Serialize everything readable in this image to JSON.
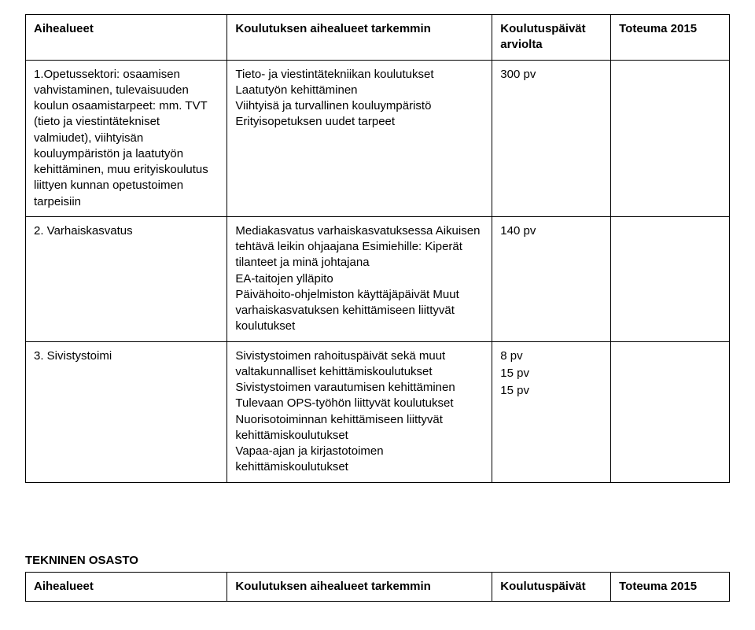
{
  "table1": {
    "headers": {
      "c1": "Aihealueet",
      "c2": "Koulutuksen aihealueet tarkemmin",
      "c3": "Koulutuspäivät arviolta",
      "c4": "Toteuma 2015"
    },
    "rows": [
      {
        "c1": "1.Opetussektori: osaamisen vahvistaminen, tulevaisuuden koulun osaamistarpeet: mm. TVT (tieto ja viestintätekniset valmiudet), viihtyisän kouluympäristön ja laatutyön kehittäminen, muu erityiskoulutus liittyen kunnan opetustoimen tarpeisiin",
        "c2": "Tieto- ja viestintätekniikan koulutukset Laatutyön kehittäminen\nViihtyisä ja turvallinen kouluympäristö Erityisopetuksen uudet tarpeet",
        "c3": "300 pv",
        "c4": ""
      },
      {
        "c1": "2. Varhaiskasvatus",
        "c2": "Mediakasvatus varhaiskasvatuksessa Aikuisen tehtävä leikin ohjaajana Esimiehille: Kiperät tilanteet ja minä johtajana\nEA-taitojen ylläpito\nPäivähoito-ohjelmiston käyttäjäpäivät Muut varhaiskasvatuksen kehittämiseen liittyvät koulutukset",
        "c3": "140 pv",
        "c4": ""
      },
      {
        "c1": "3. Sivistystoimi",
        "c2": "Sivistystoimen rahoituspäivät sekä muut valtakunnalliset kehittämiskoulutukset Sivistystoimen varautumisen kehittäminen Tulevaan OPS-työhön liittyvät koulutukset Nuorisotoiminnan kehittämiseen liittyvät kehittämiskoulutukset\nVapaa-ajan ja kirjastotoimen kehittämiskoulutukset",
        "c3_multi": [
          "8 pv",
          "",
          "",
          "",
          "15 pv",
          "15 pv"
        ],
        "c4": ""
      }
    ]
  },
  "section2": {
    "title": "TEKNINEN OSASTO",
    "headers": {
      "c1": "Aihealueet",
      "c2": "Koulutuksen aihealueet tarkemmin",
      "c3": "Koulutuspäivät",
      "c4": "Toteuma 2015"
    }
  }
}
